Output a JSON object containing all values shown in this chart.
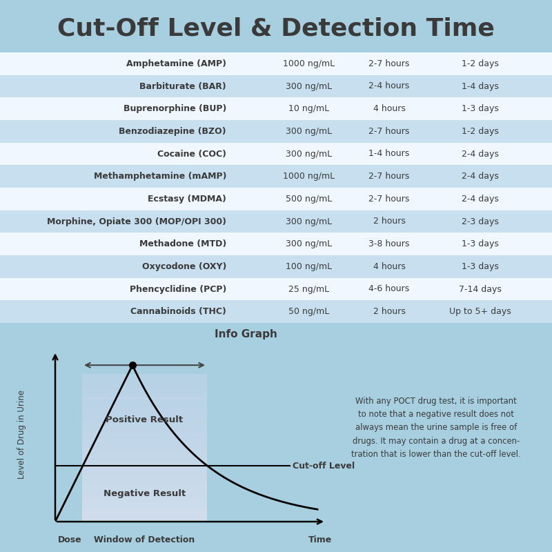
{
  "title": "Cut-Off Level & Detection Time",
  "title_fontsize": 26,
  "bg_color": "#a8cfe0",
  "table_rows": [
    {
      "name": "Amphetamine (AMP)",
      "cutoff": "1000 ng/mL",
      "onset": "2-7 hours",
      "detection": "1-2 days",
      "bg": "#f0f7ff"
    },
    {
      "name": "Barbiturate (BAR)",
      "cutoff": "300 ng/mL",
      "onset": "2-4 hours",
      "detection": "1-4 days",
      "bg": "#c8dff0"
    },
    {
      "name": "Buprenorphine (BUP)",
      "cutoff": "10 ng/mL",
      "onset": "4 hours",
      "detection": "1-3 days",
      "bg": "#f0f7ff"
    },
    {
      "name": "Benzodiazepine (BZO)",
      "cutoff": "300 ng/mL",
      "onset": "2-7 hours",
      "detection": "1-2 days",
      "bg": "#c8dff0"
    },
    {
      "name": "Cocaine (COC)",
      "cutoff": "300 ng/mL",
      "onset": "1-4 hours",
      "detection": "2-4 days",
      "bg": "#f0f7ff"
    },
    {
      "name": "Methamphetamine (mAMP)",
      "cutoff": "1000 ng/mL",
      "onset": "2-7 hours",
      "detection": "2-4 days",
      "bg": "#c8dff0"
    },
    {
      "name": "Ecstasy (MDMA)",
      "cutoff": "500 ng/mL",
      "onset": "2-7 hours",
      "detection": "2-4 days",
      "bg": "#f0f7ff"
    },
    {
      "name": "Morphine, Opiate 300 (MOP/OPI 300)",
      "cutoff": "300 ng/mL",
      "onset": "2 hours",
      "detection": "2-3 days",
      "bg": "#c8dff0"
    },
    {
      "name": "Methadone (MTD)",
      "cutoff": "300 ng/mL",
      "onset": "3-8 hours",
      "detection": "1-3 days",
      "bg": "#f0f7ff"
    },
    {
      "name": "Oxycodone (OXY)",
      "cutoff": "100 ng/mL",
      "onset": "4 hours",
      "detection": "1-3 days",
      "bg": "#c8dff0"
    },
    {
      "name": "Phencyclidine (PCP)",
      "cutoff": "25 ng/mL",
      "onset": "4-6 hours",
      "detection": "7-14 days",
      "bg": "#f0f7ff"
    },
    {
      "name": "Cannabinoids (THC)",
      "cutoff": "50 ng/mL",
      "onset": "2 hours",
      "detection": "Up to 5+ days",
      "bg": "#c8dff0"
    }
  ],
  "text_color": "#3a3a3a",
  "info_graph_title": "Info Graph",
  "ylabel": "Level of Drug in Urine",
  "xlabel_dose": "Dose",
  "xlabel_time": "Time",
  "xlabel_window": "Window of Detection",
  "positive_label": "Positive Result",
  "negative_label": "Negative Result",
  "cutoff_label": "Cut-off Level",
  "disclaimer": "With any POCT drug test, it is important\nto note that a negative result does not\nalways mean the urine sample is free of\ndrugs. It may contain a drug at a concen-\ntration that is lower than the cut-off level."
}
